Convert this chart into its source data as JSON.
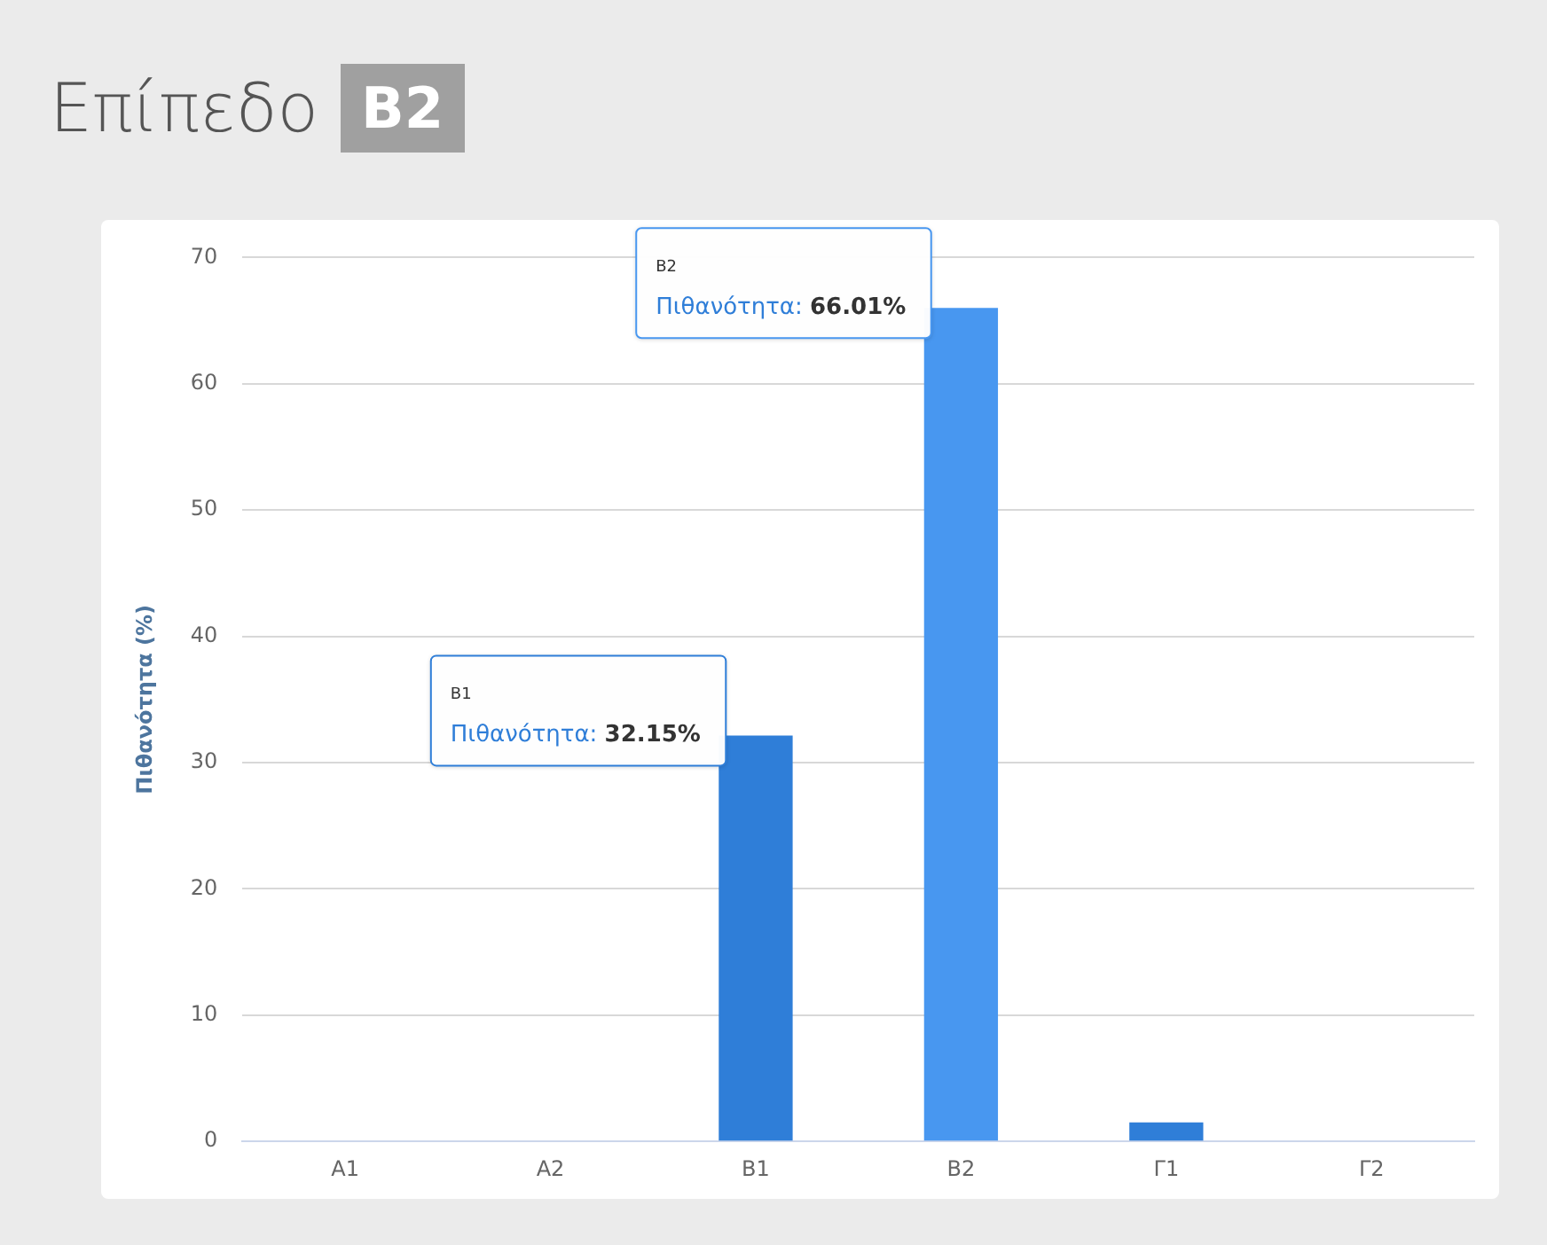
{
  "chart_data": {
    "type": "bar",
    "title": "Επίπεδο",
    "subtitle": "B2",
    "ylabel": "Πιθανότητα (%)",
    "categories": [
      "A1",
      "A2",
      "B1",
      "B2",
      "Γ1",
      "Γ2"
    ],
    "values": [
      0,
      0,
      32.15,
      66.01,
      1.5,
      0
    ],
    "colors": [
      "#2f7ed8",
      "#2f7ed8",
      "#2f7ed8",
      "#4897f0",
      "#2f7ed8",
      "#2f7ed8"
    ],
    "annotations": [
      {
        "text": "Πιθανότητα: 32.15%",
        "x": "B1",
        "y": 32.15
      },
      {
        "text": "Πιθανότητα: 66.01%",
        "x": "B2",
        "y": 66.01
      }
    ],
    "ylim": [
      0,
      70
    ],
    "yticks": [
      0,
      10,
      20,
      30,
      40,
      50,
      60,
      70
    ],
    "grid": "y",
    "legend": false
  }
}
